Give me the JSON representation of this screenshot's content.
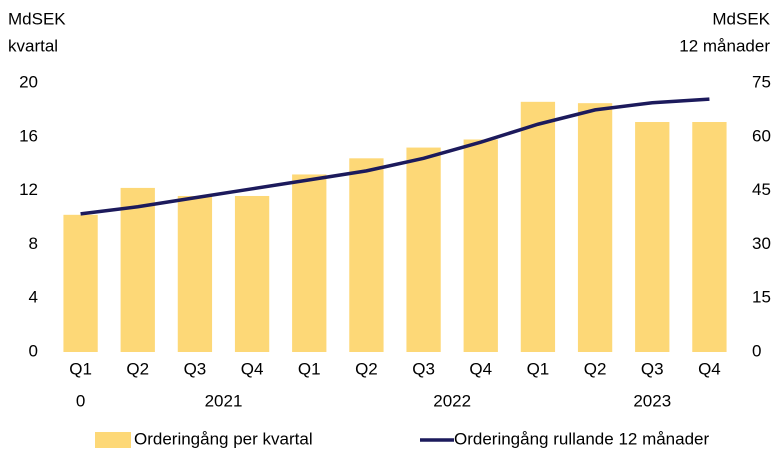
{
  "chart_data": {
    "type": "bar+line",
    "y_label": [
      "MdSEK",
      "kvartal"
    ],
    "y2_label": [
      "MdSEK",
      "12 månader"
    ],
    "categories": [
      "Q1",
      "Q2",
      "Q3",
      "Q4",
      "Q1",
      "Q2",
      "Q3",
      "Q4",
      "Q1",
      "Q2",
      "Q3",
      "Q4"
    ],
    "year_labels": [
      "0",
      "2021",
      "2022",
      "2023"
    ],
    "series": [
      {
        "name": "Orderingång per kvartal",
        "type": "bar",
        "color": "#fdd877",
        "values": [
          10.2,
          12.2,
          11.6,
          11.6,
          13.2,
          14.4,
          15.2,
          15.8,
          18.6,
          18.5,
          17.1,
          17.1
        ]
      },
      {
        "name": "Orderingång rullande 12 månader",
        "type": "line",
        "axis": "y2",
        "color": "#1c1a5c",
        "values": [
          38.5,
          40.5,
          43,
          45.5,
          48,
          50.5,
          54,
          58.5,
          63.5,
          67.5,
          69.5,
          70.5
        ]
      }
    ],
    "ylim": [
      0,
      20
    ],
    "yticks": [
      0,
      4,
      8,
      12,
      16,
      20
    ],
    "y2lim": [
      0,
      75
    ],
    "y2ticks": [
      0,
      15,
      30,
      45,
      60,
      75
    ],
    "grid": false,
    "legend": "bottom"
  }
}
